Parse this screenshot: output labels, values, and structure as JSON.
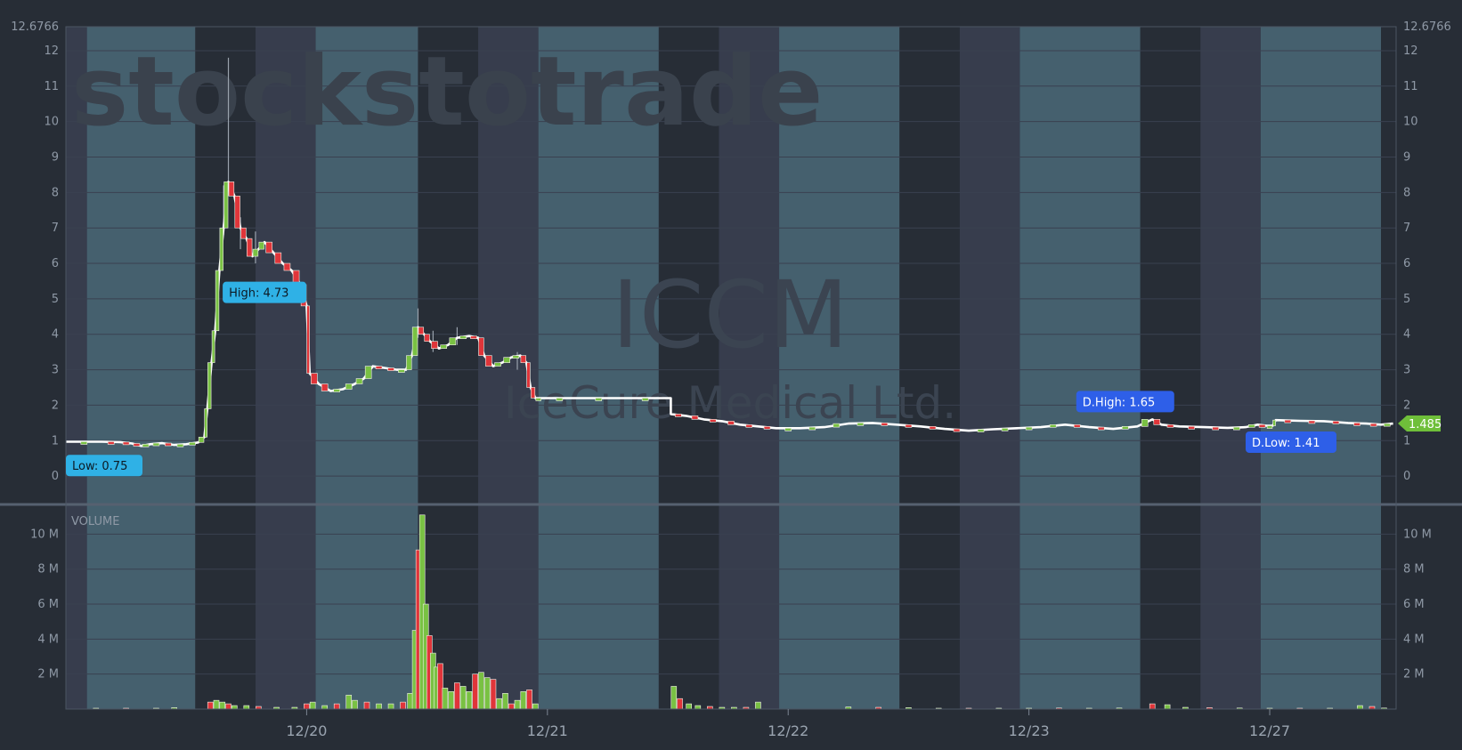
{
  "chart_data": {
    "type": "candlestick",
    "ticker": "ICCM",
    "company": "IceCure Medical Ltd.",
    "watermark": "stockstotrade",
    "volume_title": "VOLUME",
    "price_axis": {
      "top_label": "12.6766",
      "ticks": [
        {
          "label": "12",
          "v": 12
        },
        {
          "label": "11",
          "v": 11
        },
        {
          "label": "10",
          "v": 10
        },
        {
          "label": "9",
          "v": 9
        },
        {
          "label": "8",
          "v": 8
        },
        {
          "label": "7",
          "v": 7
        },
        {
          "label": "6",
          "v": 6
        },
        {
          "label": "5",
          "v": 5
        },
        {
          "label": "4",
          "v": 4
        },
        {
          "label": "3",
          "v": 3
        },
        {
          "label": "2",
          "v": 2
        },
        {
          "label": "1",
          "v": 1
        },
        {
          "label": "0",
          "v": 0
        }
      ],
      "ylim": [
        -0.8,
        12.6766
      ]
    },
    "volume_axis": {
      "ticks": [
        {
          "label": "10 M",
          "v": 10
        },
        {
          "label": "8 M",
          "v": 8
        },
        {
          "label": "6 M",
          "v": 6
        },
        {
          "label": "4 M",
          "v": 4
        },
        {
          "label": "2 M",
          "v": 2
        }
      ],
      "ylim": [
        0,
        11.7
      ]
    },
    "dates": [
      "12/20",
      "12/21",
      "12/22",
      "12/23",
      "12/27"
    ],
    "sessions": [
      {
        "kind": "pre",
        "t0": 0.0,
        "t1": 0.35
      },
      {
        "kind": "reg",
        "t0": 0.35,
        "t1": 2.15
      },
      {
        "kind": "post",
        "t0": 2.15,
        "t1": 3.15
      },
      {
        "kind": "pre",
        "t0": 3.15,
        "t1": 4.15
      },
      {
        "kind": "reg",
        "t0": 4.15,
        "t1": 5.85
      },
      {
        "kind": "post",
        "t0": 5.85,
        "t1": 6.85
      },
      {
        "kind": "pre",
        "t0": 6.85,
        "t1": 7.85
      },
      {
        "kind": "reg",
        "t0": 7.85,
        "t1": 9.85
      },
      {
        "kind": "post",
        "t0": 9.85,
        "t1": 10.85
      },
      {
        "kind": "pre",
        "t0": 10.85,
        "t1": 11.85
      },
      {
        "kind": "reg",
        "t0": 11.85,
        "t1": 13.85
      },
      {
        "kind": "post",
        "t0": 13.85,
        "t1": 14.85
      },
      {
        "kind": "pre",
        "t0": 14.85,
        "t1": 15.85
      },
      {
        "kind": "reg",
        "t0": 15.85,
        "t1": 17.85
      },
      {
        "kind": "post",
        "t0": 17.85,
        "t1": 18.85
      },
      {
        "kind": "pre",
        "t0": 18.85,
        "t1": 19.85
      },
      {
        "kind": "reg",
        "t0": 19.85,
        "t1": 21.85
      },
      {
        "kind": "post",
        "t0": 21.85,
        "t1": 22.1
      }
    ],
    "date_ticks": [
      {
        "label": "12/20",
        "t": 4.0
      },
      {
        "label": "12/21",
        "t": 8.0
      },
      {
        "label": "12/22",
        "t": 12.0
      },
      {
        "label": "12/23",
        "t": 16.0
      },
      {
        "label": "12/27",
        "t": 20.0
      }
    ],
    "price_series": [
      {
        "t": 0.0,
        "v": 0.97
      },
      {
        "t": 0.6,
        "v": 0.97
      },
      {
        "t": 0.9,
        "v": 0.96
      },
      {
        "t": 1.1,
        "v": 0.92
      },
      {
        "t": 1.25,
        "v": 0.85
      },
      {
        "t": 1.4,
        "v": 0.9
      },
      {
        "t": 1.6,
        "v": 0.93
      },
      {
        "t": 1.8,
        "v": 0.88
      },
      {
        "t": 2.0,
        "v": 0.9
      },
      {
        "t": 2.2,
        "v": 0.95
      },
      {
        "t": 2.3,
        "v": 1.1
      },
      {
        "t": 2.35,
        "v": 1.9
      },
      {
        "t": 2.42,
        "v": 3.2
      },
      {
        "t": 2.48,
        "v": 4.1
      },
      {
        "t": 2.55,
        "v": 5.8
      },
      {
        "t": 2.62,
        "v": 7.0
      },
      {
        "t": 2.7,
        "v": 8.3
      },
      {
        "t": 2.8,
        "v": 7.9
      },
      {
        "t": 2.9,
        "v": 7.0
      },
      {
        "t": 3.0,
        "v": 6.7
      },
      {
        "t": 3.1,
        "v": 6.2
      },
      {
        "t": 3.2,
        "v": 6.4
      },
      {
        "t": 3.3,
        "v": 6.6
      },
      {
        "t": 3.45,
        "v": 6.3
      },
      {
        "t": 3.6,
        "v": 6.0
      },
      {
        "t": 3.75,
        "v": 5.8
      },
      {
        "t": 3.9,
        "v": 5.4
      },
      {
        "t": 4.0,
        "v": 4.8
      },
      {
        "t": 4.05,
        "v": 2.9
      },
      {
        "t": 4.2,
        "v": 2.6
      },
      {
        "t": 4.4,
        "v": 2.4
      },
      {
        "t": 4.6,
        "v": 2.45
      },
      {
        "t": 4.8,
        "v": 2.6
      },
      {
        "t": 4.95,
        "v": 2.75
      },
      {
        "t": 5.1,
        "v": 3.1
      },
      {
        "t": 5.3,
        "v": 3.05
      },
      {
        "t": 5.5,
        "v": 3.0
      },
      {
        "t": 5.65,
        "v": 3.0
      },
      {
        "t": 5.75,
        "v": 3.4
      },
      {
        "t": 5.85,
        "v": 4.2
      },
      {
        "t": 5.95,
        "v": 4.0
      },
      {
        "t": 6.05,
        "v": 3.8
      },
      {
        "t": 6.2,
        "v": 3.6
      },
      {
        "t": 6.35,
        "v": 3.7
      },
      {
        "t": 6.5,
        "v": 3.9
      },
      {
        "t": 6.7,
        "v": 3.95
      },
      {
        "t": 6.85,
        "v": 3.9
      },
      {
        "t": 6.95,
        "v": 3.4
      },
      {
        "t": 7.1,
        "v": 3.1
      },
      {
        "t": 7.25,
        "v": 3.2
      },
      {
        "t": 7.4,
        "v": 3.35
      },
      {
        "t": 7.55,
        "v": 3.4
      },
      {
        "t": 7.65,
        "v": 3.2
      },
      {
        "t": 7.72,
        "v": 2.5
      },
      {
        "t": 7.8,
        "v": 2.2
      },
      {
        "t": 7.9,
        "v": 2.2
      },
      {
        "t": 8.5,
        "v": 2.2
      },
      {
        "t": 9.2,
        "v": 2.2
      },
      {
        "t": 10.05,
        "v": 2.2
      },
      {
        "t": 10.05,
        "v": 1.75
      },
      {
        "t": 10.3,
        "v": 1.7
      },
      {
        "t": 10.6,
        "v": 1.6
      },
      {
        "t": 10.9,
        "v": 1.55
      },
      {
        "t": 11.2,
        "v": 1.45
      },
      {
        "t": 11.5,
        "v": 1.4
      },
      {
        "t": 11.8,
        "v": 1.35
      },
      {
        "t": 12.2,
        "v": 1.35
      },
      {
        "t": 12.6,
        "v": 1.38
      },
      {
        "t": 13.0,
        "v": 1.48
      },
      {
        "t": 13.4,
        "v": 1.5
      },
      {
        "t": 13.8,
        "v": 1.45
      },
      {
        "t": 14.2,
        "v": 1.4
      },
      {
        "t": 14.6,
        "v": 1.33
      },
      {
        "t": 15.0,
        "v": 1.28
      },
      {
        "t": 15.4,
        "v": 1.32
      },
      {
        "t": 15.8,
        "v": 1.35
      },
      {
        "t": 16.2,
        "v": 1.38
      },
      {
        "t": 16.6,
        "v": 1.45
      },
      {
        "t": 17.0,
        "v": 1.38
      },
      {
        "t": 17.4,
        "v": 1.33
      },
      {
        "t": 17.8,
        "v": 1.4
      },
      {
        "t": 18.05,
        "v": 1.6
      },
      {
        "t": 18.2,
        "v": 1.45
      },
      {
        "t": 18.5,
        "v": 1.4
      },
      {
        "t": 18.9,
        "v": 1.38
      },
      {
        "t": 19.3,
        "v": 1.36
      },
      {
        "t": 19.6,
        "v": 1.38
      },
      {
        "t": 19.8,
        "v": 1.45
      },
      {
        "t": 19.95,
        "v": 1.42
      },
      {
        "t": 20.05,
        "v": 1.42
      },
      {
        "t": 20.1,
        "v": 1.58
      },
      {
        "t": 20.5,
        "v": 1.56
      },
      {
        "t": 20.9,
        "v": 1.55
      },
      {
        "t": 21.3,
        "v": 1.5
      },
      {
        "t": 21.6,
        "v": 1.48
      },
      {
        "t": 21.85,
        "v": 1.45
      },
      {
        "t": 22.05,
        "v": 1.48
      }
    ],
    "spikes": [
      {
        "t": 2.7,
        "hi": 11.8,
        "lo": 7.9
      },
      {
        "t": 2.62,
        "hi": 8.2,
        "lo": 6.8
      },
      {
        "t": 2.9,
        "hi": 7.3,
        "lo": 6.4
      },
      {
        "t": 3.15,
        "hi": 6.9,
        "lo": 6.0
      },
      {
        "t": 5.85,
        "hi": 4.73,
        "lo": 3.9
      },
      {
        "t": 6.1,
        "hi": 4.1,
        "lo": 3.5
      },
      {
        "t": 6.5,
        "hi": 4.2,
        "lo": 3.7
      },
      {
        "t": 7.5,
        "hi": 3.5,
        "lo": 3.0
      }
    ],
    "volume_bars": [
      {
        "t": 0.5,
        "v": 0.05
      },
      {
        "t": 1.0,
        "v": 0.05
      },
      {
        "t": 1.5,
        "v": 0.05
      },
      {
        "t": 1.8,
        "v": 0.08
      },
      {
        "t": 2.4,
        "v": 0.4
      },
      {
        "t": 2.5,
        "v": 0.5
      },
      {
        "t": 2.6,
        "v": 0.4
      },
      {
        "t": 2.7,
        "v": 0.3
      },
      {
        "t": 2.8,
        "v": 0.2
      },
      {
        "t": 3.0,
        "v": 0.2
      },
      {
        "t": 3.2,
        "v": 0.15
      },
      {
        "t": 3.5,
        "v": 0.1
      },
      {
        "t": 3.8,
        "v": 0.1
      },
      {
        "t": 4.0,
        "v": 0.3
      },
      {
        "t": 4.1,
        "v": 0.4
      },
      {
        "t": 4.3,
        "v": 0.2
      },
      {
        "t": 4.5,
        "v": 0.3
      },
      {
        "t": 4.7,
        "v": 0.8
      },
      {
        "t": 4.8,
        "v": 0.5
      },
      {
        "t": 5.0,
        "v": 0.4
      },
      {
        "t": 5.2,
        "v": 0.3
      },
      {
        "t": 5.4,
        "v": 0.3
      },
      {
        "t": 5.6,
        "v": 0.4
      },
      {
        "t": 5.72,
        "v": 0.9
      },
      {
        "t": 5.8,
        "v": 4.5
      },
      {
        "t": 5.86,
        "v": 9.1
      },
      {
        "t": 5.92,
        "v": 11.1
      },
      {
        "t": 5.98,
        "v": 6.0
      },
      {
        "t": 6.04,
        "v": 4.2
      },
      {
        "t": 6.1,
        "v": 3.2
      },
      {
        "t": 6.16,
        "v": 2.4
      },
      {
        "t": 6.22,
        "v": 2.6
      },
      {
        "t": 6.3,
        "v": 1.2
      },
      {
        "t": 6.4,
        "v": 1.0
      },
      {
        "t": 6.5,
        "v": 1.5
      },
      {
        "t": 6.6,
        "v": 1.3
      },
      {
        "t": 6.7,
        "v": 1.0
      },
      {
        "t": 6.8,
        "v": 2.0
      },
      {
        "t": 6.9,
        "v": 2.1
      },
      {
        "t": 7.0,
        "v": 1.8
      },
      {
        "t": 7.1,
        "v": 1.7
      },
      {
        "t": 7.2,
        "v": 0.6
      },
      {
        "t": 7.3,
        "v": 0.9
      },
      {
        "t": 7.4,
        "v": 0.3
      },
      {
        "t": 7.5,
        "v": 0.5
      },
      {
        "t": 7.6,
        "v": 1.0
      },
      {
        "t": 7.7,
        "v": 1.1
      },
      {
        "t": 7.8,
        "v": 0.3
      },
      {
        "t": 10.1,
        "v": 1.3
      },
      {
        "t": 10.2,
        "v": 0.6
      },
      {
        "t": 10.35,
        "v": 0.3
      },
      {
        "t": 10.5,
        "v": 0.2
      },
      {
        "t": 10.7,
        "v": 0.15
      },
      {
        "t": 10.9,
        "v": 0.1
      },
      {
        "t": 11.1,
        "v": 0.1
      },
      {
        "t": 11.3,
        "v": 0.1
      },
      {
        "t": 11.5,
        "v": 0.4
      },
      {
        "t": 13.0,
        "v": 0.12
      },
      {
        "t": 13.5,
        "v": 0.1
      },
      {
        "t": 14.0,
        "v": 0.08
      },
      {
        "t": 14.5,
        "v": 0.05
      },
      {
        "t": 15.0,
        "v": 0.05
      },
      {
        "t": 15.5,
        "v": 0.05
      },
      {
        "t": 16.0,
        "v": 0.05
      },
      {
        "t": 16.5,
        "v": 0.06
      },
      {
        "t": 17.0,
        "v": 0.05
      },
      {
        "t": 17.5,
        "v": 0.06
      },
      {
        "t": 18.05,
        "v": 0.3
      },
      {
        "t": 18.3,
        "v": 0.25
      },
      {
        "t": 18.6,
        "v": 0.1
      },
      {
        "t": 19.0,
        "v": 0.08
      },
      {
        "t": 19.5,
        "v": 0.06
      },
      {
        "t": 20.0,
        "v": 0.05
      },
      {
        "t": 20.5,
        "v": 0.05
      },
      {
        "t": 21.0,
        "v": 0.05
      },
      {
        "t": 21.5,
        "v": 0.2
      },
      {
        "t": 21.7,
        "v": 0.15
      },
      {
        "t": 21.9,
        "v": 0.06
      }
    ],
    "annotations": [
      {
        "label": "Low: 0.75",
        "t": 0.0,
        "v": 0.75,
        "color": "#2fb1e6",
        "text_color": "#0d1a24"
      },
      {
        "label": "High: 4.73",
        "t": 3.3,
        "v": 4.73,
        "color": "#2fb1e6",
        "text_color": "#0d1a24"
      },
      {
        "label": "D.High: 1.65",
        "t": 17.6,
        "v": 1.65,
        "color": "#2e5fe8",
        "text_color": "#ffffff"
      },
      {
        "label": "D.Low: 1.41",
        "t": 19.6,
        "v": 1.41,
        "color": "#2e5fe8",
        "text_color": "#ffffff"
      }
    ],
    "last_price": {
      "label": "1.485",
      "v": 1.485,
      "color": "#6fbf3a"
    },
    "colors": {
      "up": "#79c143",
      "down": "#e0353a",
      "line": "#ffffff",
      "pre": "#373d4d",
      "reg": "#45606e",
      "post": "#272d36",
      "grid": "#3c4450"
    }
  }
}
